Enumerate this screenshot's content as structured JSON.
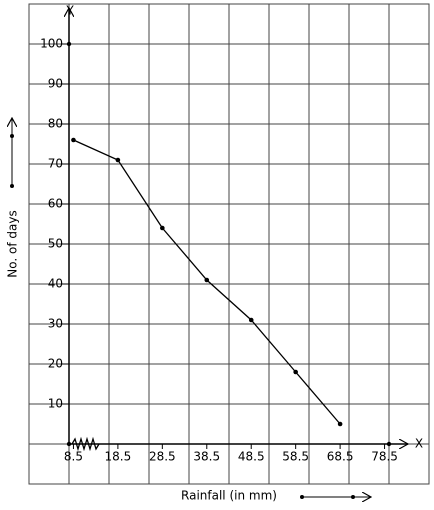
{
  "chart_data": {
    "type": "line",
    "x_label": "Rainfall (in mm)",
    "y_label": "No. of days",
    "x_axis_name": "X",
    "y_axis_name": "Y",
    "x": [
      8.5,
      18.5,
      28.5,
      38.5,
      48.5,
      58.5,
      68.5
    ],
    "series": [
      {
        "color": "#000000",
        "values": [
          76,
          71,
          54,
          41,
          31,
          18,
          5
        ]
      }
    ],
    "xlim": [
      -1.5,
      88.5
    ],
    "xticks": [
      8.5,
      18.5,
      28.5,
      38.5,
      48.5,
      58.5,
      68.5,
      78.5
    ],
    "ylim": [
      -10,
      110
    ],
    "yticks": [
      10,
      20,
      30,
      40,
      50,
      60,
      70,
      80,
      90,
      100
    ],
    "grid": true
  }
}
